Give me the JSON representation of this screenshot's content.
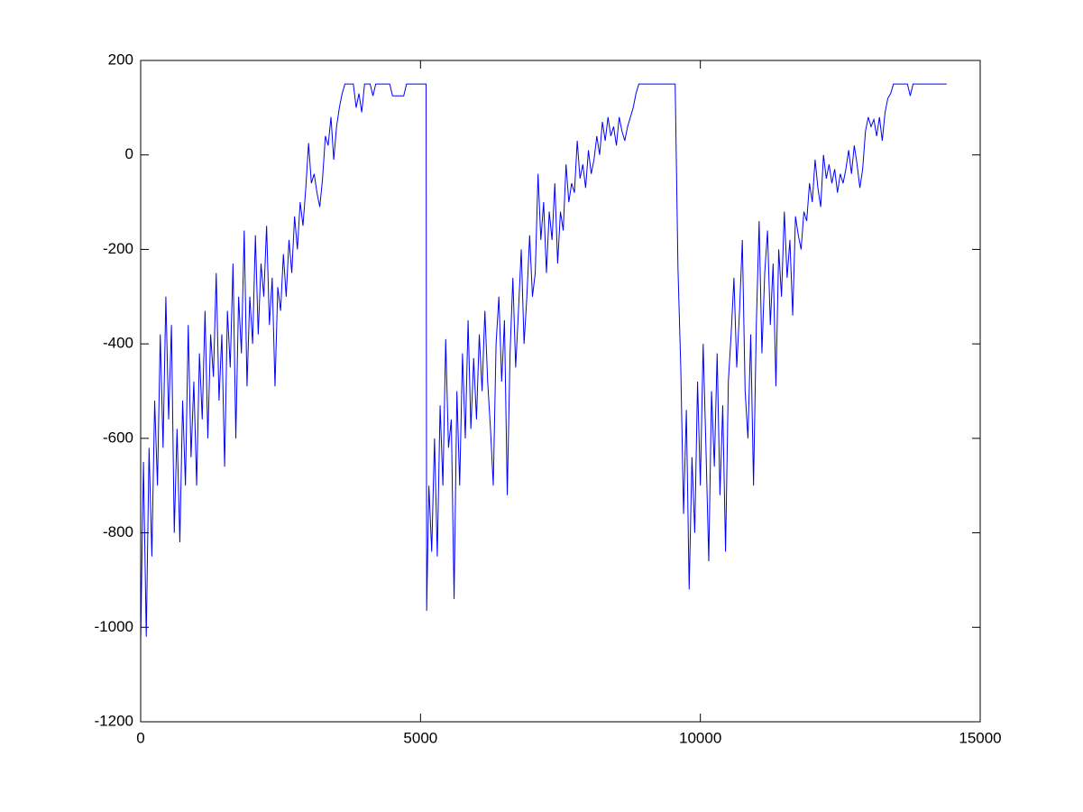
{
  "chart_data": {
    "type": "line",
    "color": "#0000ff",
    "xlim": [
      0,
      15000
    ],
    "ylim": [
      -1200,
      200
    ],
    "xticks": [
      0,
      5000,
      10000,
      15000
    ],
    "yticks": [
      -1200,
      -1000,
      -800,
      -600,
      -400,
      -200,
      0,
      200
    ],
    "grid": false,
    "x": [
      0,
      50,
      100,
      150,
      200,
      250,
      300,
      350,
      400,
      450,
      500,
      550,
      600,
      650,
      700,
      750,
      800,
      850,
      900,
      950,
      1000,
      1050,
      1100,
      1150,
      1200,
      1250,
      1300,
      1350,
      1400,
      1450,
      1500,
      1550,
      1600,
      1650,
      1700,
      1750,
      1800,
      1850,
      1900,
      1950,
      2000,
      2050,
      2100,
      2150,
      2200,
      2250,
      2300,
      2350,
      2400,
      2450,
      2500,
      2550,
      2600,
      2650,
      2700,
      2750,
      2800,
      2850,
      2900,
      2950,
      3000,
      3050,
      3100,
      3150,
      3200,
      3250,
      3300,
      3350,
      3400,
      3450,
      3500,
      3550,
      3600,
      3650,
      3800,
      3850,
      3900,
      3950,
      4000,
      4100,
      4150,
      4200,
      4450,
      4500,
      4700,
      4750,
      5100,
      5110,
      5150,
      5200,
      5250,
      5300,
      5350,
      5400,
      5450,
      5500,
      5550,
      5600,
      5650,
      5700,
      5750,
      5800,
      5850,
      5900,
      5950,
      6000,
      6050,
      6100,
      6150,
      6200,
      6250,
      6300,
      6350,
      6400,
      6450,
      6500,
      6550,
      6600,
      6650,
      6700,
      6750,
      6800,
      6850,
      6900,
      6950,
      7000,
      7050,
      7100,
      7150,
      7200,
      7250,
      7300,
      7350,
      7400,
      7450,
      7500,
      7550,
      7600,
      7650,
      7700,
      7750,
      7800,
      7850,
      7900,
      7950,
      8000,
      8050,
      8100,
      8150,
      8200,
      8250,
      8300,
      8350,
      8400,
      8450,
      8500,
      8550,
      8600,
      8650,
      8700,
      8750,
      8800,
      8850,
      8900,
      9550,
      9600,
      9650,
      9700,
      9750,
      9800,
      9850,
      9900,
      9950,
      10000,
      10050,
      10100,
      10150,
      10200,
      10250,
      10300,
      10350,
      10400,
      10450,
      10500,
      10550,
      10600,
      10650,
      10700,
      10750,
      10800,
      10850,
      10900,
      10950,
      11000,
      11050,
      11100,
      11150,
      11200,
      11250,
      11300,
      11350,
      11400,
      11450,
      11500,
      11550,
      11600,
      11650,
      11700,
      11750,
      11800,
      11850,
      11900,
      11950,
      12000,
      12050,
      12100,
      12150,
      12200,
      12250,
      12300,
      12350,
      12400,
      12450,
      12500,
      12550,
      12600,
      12650,
      12700,
      12750,
      12800,
      12850,
      12900,
      12950,
      13000,
      13050,
      13100,
      13150,
      13200,
      13250,
      13300,
      13350,
      13400,
      13450,
      13700,
      13750,
      13800,
      14400
    ],
    "values": [
      -1030,
      -650,
      -1020,
      -620,
      -850,
      -520,
      -700,
      -380,
      -620,
      -300,
      -560,
      -360,
      -800,
      -580,
      -820,
      -520,
      -700,
      -360,
      -640,
      -480,
      -700,
      -420,
      -560,
      -330,
      -600,
      -380,
      -470,
      -250,
      -520,
      -380,
      -660,
      -330,
      -450,
      -230,
      -600,
      -300,
      -420,
      -160,
      -490,
      -300,
      -400,
      -170,
      -380,
      -230,
      -300,
      -150,
      -360,
      -260,
      -490,
      -280,
      -330,
      -210,
      -300,
      -180,
      -250,
      -130,
      -200,
      -100,
      -150,
      -70,
      25,
      -60,
      -40,
      -80,
      -110,
      -50,
      40,
      20,
      80,
      -10,
      60,
      100,
      130,
      150,
      150,
      100,
      130,
      90,
      150,
      150,
      125,
      150,
      150,
      125,
      125,
      150,
      150,
      -965,
      -700,
      -840,
      -600,
      -850,
      -530,
      -700,
      -390,
      -620,
      -560,
      -940,
      -500,
      -700,
      -420,
      -600,
      -350,
      -580,
      -430,
      -560,
      -380,
      -500,
      -330,
      -480,
      -580,
      -700,
      -400,
      -300,
      -480,
      -350,
      -720,
      -420,
      -260,
      -450,
      -330,
      -200,
      -400,
      -300,
      -170,
      -300,
      -250,
      -40,
      -180,
      -100,
      -250,
      -120,
      -180,
      -60,
      -230,
      -120,
      -160,
      -20,
      -100,
      -60,
      -80,
      30,
      -50,
      -20,
      -70,
      10,
      -40,
      -10,
      40,
      0,
      70,
      30,
      80,
      40,
      60,
      20,
      80,
      50,
      30,
      60,
      80,
      100,
      130,
      150,
      150,
      -240,
      -450,
      -760,
      -540,
      -920,
      -640,
      -800,
      -480,
      -700,
      -400,
      -620,
      -860,
      -500,
      -660,
      -420,
      -720,
      -530,
      -840,
      -480,
      -380,
      -260,
      -450,
      -330,
      -180,
      -500,
      -600,
      -380,
      -700,
      -360,
      -140,
      -420,
      -250,
      -160,
      -360,
      -230,
      -490,
      -200,
      -300,
      -120,
      -260,
      -180,
      -340,
      -130,
      -170,
      -200,
      -120,
      -140,
      -60,
      -100,
      -10,
      -70,
      -110,
      0,
      -50,
      -20,
      -60,
      -30,
      -80,
      -40,
      -60,
      -30,
      10,
      -40,
      20,
      -20,
      -70,
      -30,
      50,
      80,
      60,
      75,
      40,
      80,
      30,
      90,
      120,
      130,
      150,
      150,
      125,
      150,
      150
    ]
  }
}
